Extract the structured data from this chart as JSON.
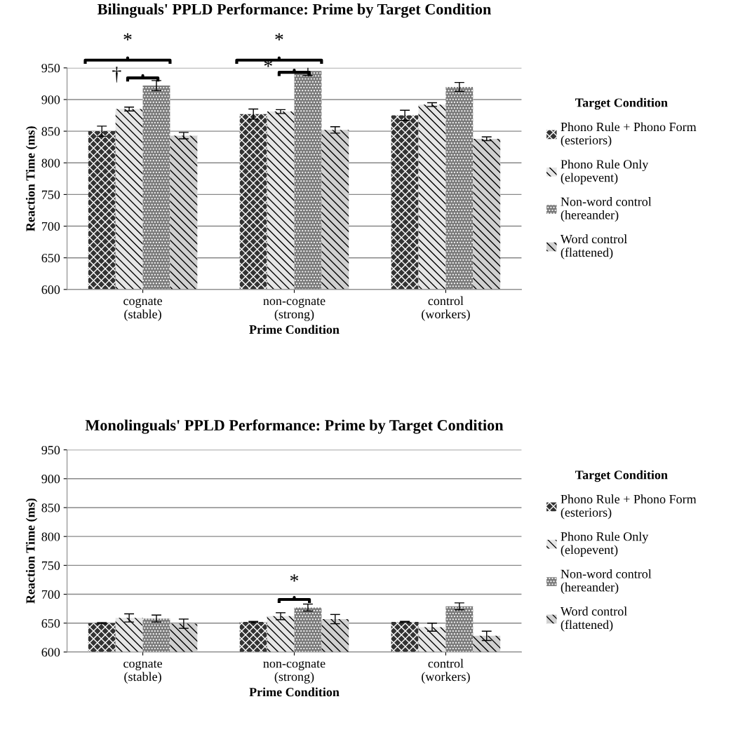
{
  "chart_data": [
    {
      "type": "bar",
      "title": "Bilinguals' PPLD Performance: Prime by Target Condition",
      "xlabel": "Prime Condition",
      "ylabel": "Reaction Time (ms)",
      "legend_title": "Target Condition",
      "legend": "right",
      "grid": "y",
      "categories": [
        "cognate\n(stable)",
        "non-cognate\n(strong)",
        "control\n(workers)"
      ],
      "ylim": [
        600,
        950
      ],
      "yticks": [
        600,
        650,
        700,
        750,
        800,
        850,
        900,
        950
      ],
      "series": [
        {
          "name": "Phono Rule + Phono Form\n(esteriors)",
          "color": "#333333",
          "values": [
            850,
            877,
            875
          ],
          "errors": [
            8,
            8,
            8
          ]
        },
        {
          "name": "Phono Rule Only\n(elopevent)",
          "color": "#e6e6e6",
          "values": [
            885,
            881,
            892
          ],
          "errors": [
            3,
            3,
            3
          ]
        },
        {
          "name": "Non-word control\n(hereander)",
          "color": "#7a7a7a",
          "values": [
            922,
            945,
            920
          ],
          "errors": [
            8,
            7,
            7
          ]
        },
        {
          "name": "Word control\n(flattened)",
          "color": "#d0d0d0",
          "values": [
            843,
            852,
            838
          ],
          "errors": [
            5,
            5,
            3
          ]
        }
      ],
      "annotations": [
        "*",
        "†",
        "*",
        "*"
      ]
    },
    {
      "type": "bar",
      "title": "Monolinguals' PPLD Performance: Prime by Target Condition",
      "xlabel": "Prime Condition",
      "ylabel": "Reaction Time (ms)",
      "legend_title": "Target Condition",
      "legend": "right",
      "grid": "y",
      "categories": [
        "cognate\n(stable)",
        "non-cognate\n(strong)",
        "control\n(workers)"
      ],
      "ylim": [
        600,
        950
      ],
      "yticks": [
        600,
        650,
        700,
        750,
        800,
        850,
        900,
        950
      ],
      "series": [
        {
          "name": "Phono Rule + Phono Form\n(esteriors)",
          "color": "#333333",
          "values": [
            650,
            652,
            652
          ],
          "errors": [
            1,
            1,
            1
          ]
        },
        {
          "name": "Phono Rule Only\n(elopevent)",
          "color": "#e6e6e6",
          "values": [
            659,
            662,
            643
          ],
          "errors": [
            7,
            6,
            7
          ]
        },
        {
          "name": "Non-word control\n(hereander)",
          "color": "#7a7a7a",
          "values": [
            658,
            677,
            679
          ],
          "errors": [
            6,
            6,
            6
          ]
        },
        {
          "name": "Word control\n(flattened)",
          "color": "#d0d0d0",
          "values": [
            649,
            657,
            628
          ],
          "errors": [
            8,
            8,
            8
          ]
        }
      ],
      "annotations": [
        "*"
      ]
    }
  ]
}
